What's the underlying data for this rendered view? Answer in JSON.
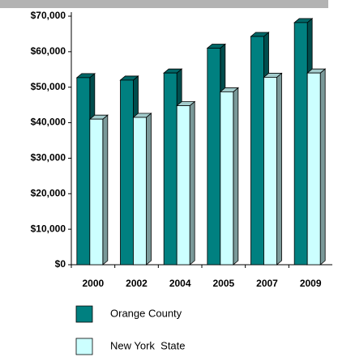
{
  "chart_data": {
    "type": "bar",
    "categories": [
      "2000",
      "2002",
      "2004",
      "2005",
      "2007",
      "2009"
    ],
    "series": [
      {
        "name": "Orange County",
        "color": "#008080",
        "values": [
          52700,
          52000,
          54000,
          61000,
          64300,
          68200
        ]
      },
      {
        "name": "New York  State",
        "color": "#ccffff",
        "values": [
          41000,
          41500,
          44800,
          48700,
          52800,
          54000
        ]
      }
    ],
    "ylim": [
      0,
      70000
    ],
    "yticks": [
      {
        "value": 0,
        "label": "$0"
      },
      {
        "value": 10000,
        "label": "$10,000"
      },
      {
        "value": 20000,
        "label": "$20,000"
      },
      {
        "value": 30000,
        "label": "$30,000"
      },
      {
        "value": 40000,
        "label": "$40,000"
      },
      {
        "value": 50000,
        "label": "$50,000"
      },
      {
        "value": 60000,
        "label": "$60,000"
      },
      {
        "value": 70000,
        "label": "$70,000"
      }
    ],
    "grid": false,
    "legend": "bottom"
  }
}
